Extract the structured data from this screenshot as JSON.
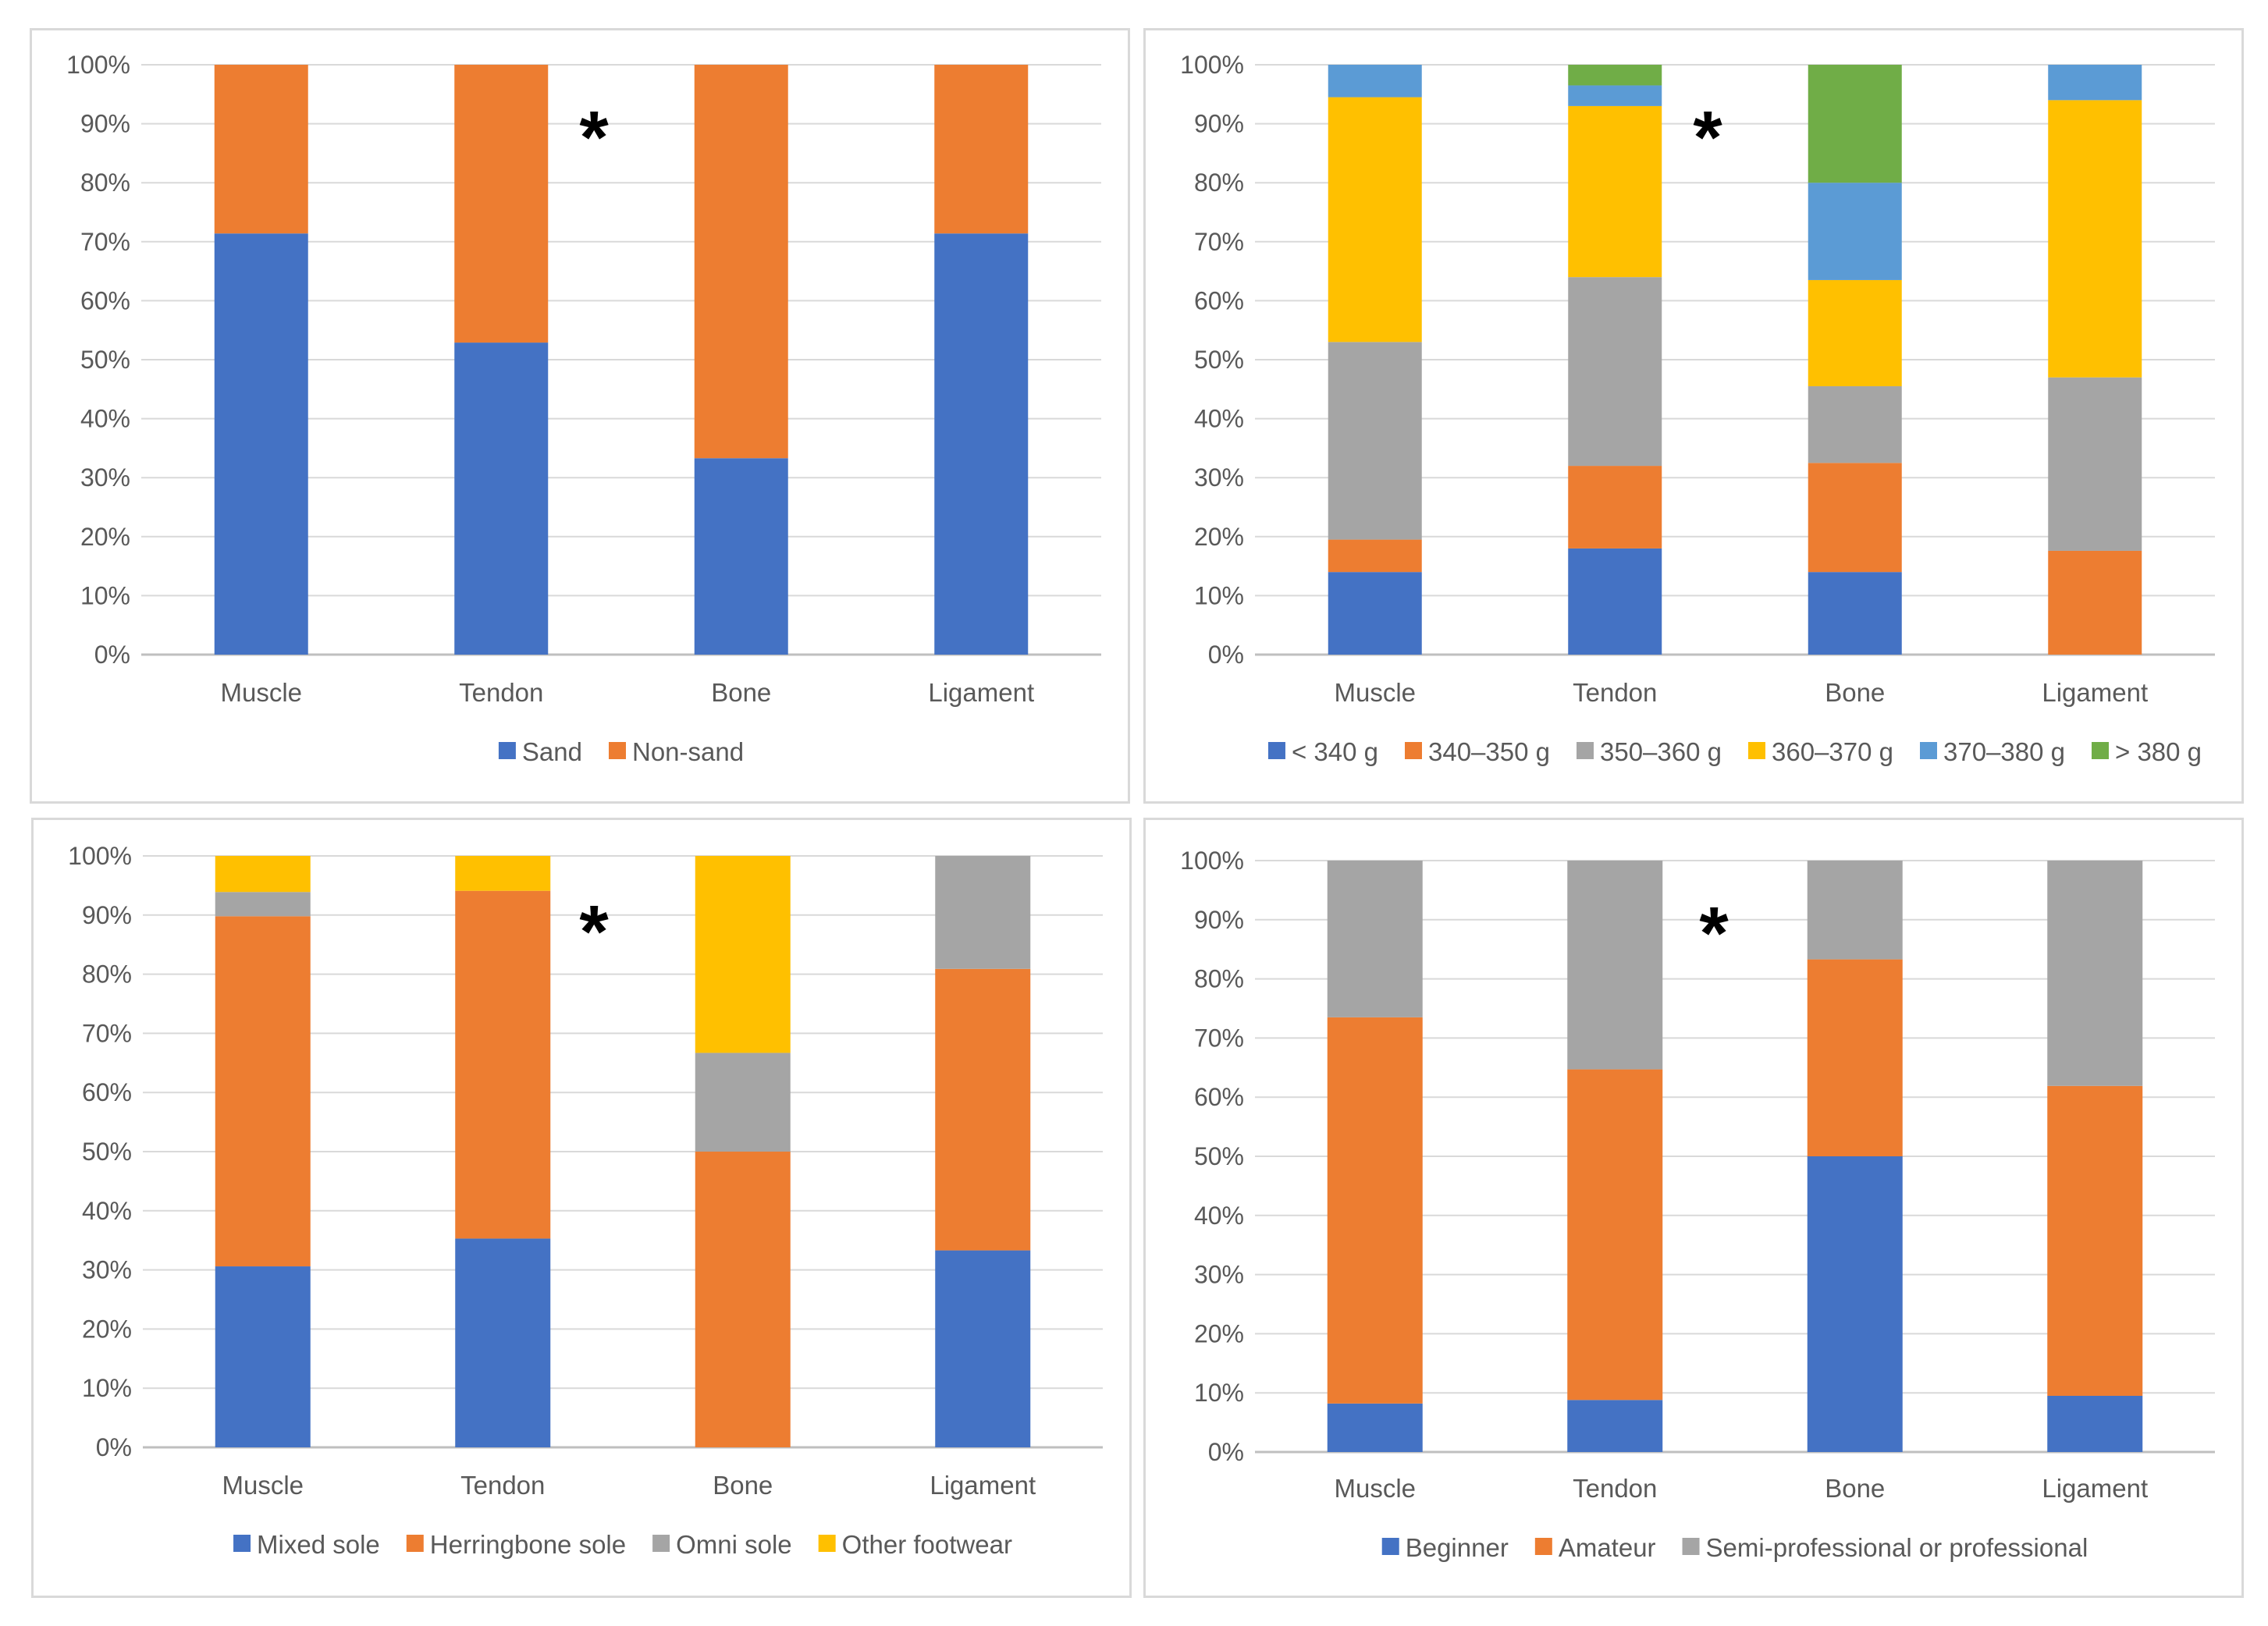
{
  "chart_data": [
    {
      "type": "bar",
      "stacked": "percent",
      "title": "",
      "xlabel": "",
      "ylabel": "",
      "ylim": [
        0,
        100
      ],
      "yticks": [
        "0%",
        "10%",
        "20%",
        "30%",
        "40%",
        "50%",
        "60%",
        "70%",
        "80%",
        "90%",
        "100%"
      ],
      "categories": [
        "Muscle",
        "Tendon",
        "Bone",
        "Ligament"
      ],
      "series": [
        {
          "name": "Sand",
          "color": "#4472C4",
          "values": [
            71.4,
            52.9,
            33.3,
            71.4
          ]
        },
        {
          "name": "Non-sand",
          "color": "#ED7D31",
          "values": [
            28.6,
            47.1,
            66.7,
            28.6
          ]
        }
      ],
      "annotation": "*",
      "legend": "bottom",
      "grid": true
    },
    {
      "type": "bar",
      "stacked": "percent",
      "title": "",
      "xlabel": "",
      "ylabel": "",
      "ylim": [
        0,
        100
      ],
      "yticks": [
        "0%",
        "10%",
        "20%",
        "30%",
        "40%",
        "50%",
        "60%",
        "70%",
        "80%",
        "90%",
        "100%"
      ],
      "categories": [
        "Muscle",
        "Tendon",
        "Bone",
        "Ligament"
      ],
      "series": [
        {
          "name": "< 340 g",
          "color": "#4472C4",
          "values": [
            14,
            18,
            14,
            0
          ]
        },
        {
          "name": "340–350 g",
          "color": "#ED7D31",
          "values": [
            5.5,
            14,
            18.5,
            17.6
          ]
        },
        {
          "name": "350–360 g",
          "color": "#A5A5A5",
          "values": [
            33.5,
            32,
            13,
            29.4
          ]
        },
        {
          "name": "360–370 g",
          "color": "#FFC000",
          "values": [
            41.5,
            29,
            18,
            47
          ]
        },
        {
          "name": "370–380 g",
          "color": "#5B9BD5",
          "values": [
            5.5,
            3.5,
            16.5,
            6
          ]
        },
        {
          "name": "> 380 g",
          "color": "#70AD47",
          "values": [
            0,
            3.5,
            20,
            0
          ]
        }
      ],
      "annotation": "*",
      "legend": "bottom",
      "grid": true
    },
    {
      "type": "bar",
      "stacked": "percent",
      "title": "",
      "xlabel": "",
      "ylabel": "",
      "ylim": [
        0,
        100
      ],
      "yticks": [
        "0%",
        "10%",
        "20%",
        "30%",
        "40%",
        "50%",
        "60%",
        "70%",
        "80%",
        "90%",
        "100%"
      ],
      "categories": [
        "Muscle",
        "Tendon",
        "Bone",
        "Ligament"
      ],
      "series": [
        {
          "name": "Mixed sole",
          "color": "#4472C4",
          "values": [
            30.6,
            35.3,
            0,
            33.3
          ]
        },
        {
          "name": "Herringbone sole",
          "color": "#ED7D31",
          "values": [
            59.2,
            58.8,
            50,
            47.6
          ]
        },
        {
          "name": "Omni sole",
          "color": "#A5A5A5",
          "values": [
            4.1,
            0,
            16.7,
            19.1
          ]
        },
        {
          "name": "Other footwear",
          "color": "#FFC000",
          "values": [
            6.1,
            5.9,
            33.3,
            0
          ]
        }
      ],
      "annotation": "*",
      "legend": "bottom",
      "grid": true
    },
    {
      "type": "bar",
      "stacked": "percent",
      "title": "",
      "xlabel": "",
      "ylabel": "",
      "ylim": [
        0,
        100
      ],
      "yticks": [
        "0%",
        "10%",
        "20%",
        "30%",
        "40%",
        "50%",
        "60%",
        "70%",
        "80%",
        "90%",
        "100%"
      ],
      "categories": [
        "Muscle",
        "Tendon",
        "Bone",
        "Ligament"
      ],
      "series": [
        {
          "name": "Beginner",
          "color": "#4472C4",
          "values": [
            8.2,
            8.8,
            50,
            9.5
          ]
        },
        {
          "name": "Amateur",
          "color": "#ED7D31",
          "values": [
            65.3,
            55.9,
            33.3,
            52.4
          ]
        },
        {
          "name": "Semi-professional or professional",
          "color": "#A5A5A5",
          "values": [
            26.5,
            35.3,
            16.7,
            38.1
          ]
        }
      ],
      "annotation": "*",
      "legend": "bottom",
      "grid": true
    }
  ]
}
